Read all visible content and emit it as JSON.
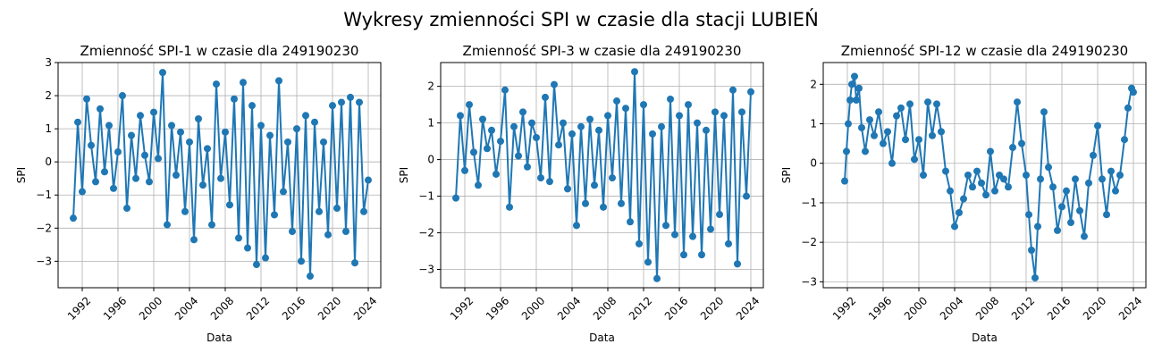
{
  "figure": {
    "suptitle": "Wykresy zmienności SPI w czasie dla stacji LUBIEŃ",
    "line_color": "#1f77b4",
    "grid_color": "#b0b0b0"
  },
  "chart_data": [
    {
      "type": "line",
      "title": "Zmienność SPI-1 w czasie dla 249190230",
      "xlabel": "Data",
      "ylabel": "SPI",
      "xlim": [
        1989.3,
        2025.4
      ],
      "ylim": [
        -3.8,
        3.0
      ],
      "xticks": [
        "1992",
        "1996",
        "2000",
        "2004",
        "2008",
        "2012",
        "2016",
        "2020",
        "2024"
      ],
      "yticks": [
        -3,
        -2,
        -1,
        0,
        1,
        2,
        3
      ],
      "grid": true,
      "marker": "circle",
      "series": [
        {
          "x": [
            1991.0,
            1991.5,
            1992.0,
            1992.5,
            1993.0,
            1993.5,
            1994.0,
            1994.5,
            1995.0,
            1995.5,
            1996.0,
            1996.5,
            1997.0,
            1997.5,
            1998.0,
            1998.5,
            1999.0,
            1999.5,
            2000.0,
            2000.5,
            2001.0,
            2001.5,
            2002.0,
            2002.5,
            2003.0,
            2003.5,
            2004.0,
            2004.5,
            2005.0,
            2005.5,
            2006.0,
            2006.5,
            2007.0,
            2007.5,
            2008.0,
            2008.5,
            2009.0,
            2009.5,
            2010.0,
            2010.5,
            2011.0,
            2011.5,
            2012.0,
            2012.5,
            2013.0,
            2013.5,
            2014.0,
            2014.5,
            2015.0,
            2015.5,
            2016.0,
            2016.5,
            2017.0,
            2017.5,
            2018.0,
            2018.5,
            2019.0,
            2019.5,
            2020.0,
            2020.5,
            2021.0,
            2021.5,
            2022.0,
            2022.5,
            2023.0,
            2023.5,
            2024.0
          ],
          "y": [
            -1.7,
            1.2,
            -0.9,
            1.9,
            0.5,
            -0.6,
            1.6,
            -0.3,
            1.1,
            -0.8,
            0.3,
            2.0,
            -1.4,
            0.8,
            -0.5,
            1.4,
            0.2,
            -0.6,
            1.5,
            0.1,
            2.7,
            -1.9,
            1.1,
            -0.4,
            0.9,
            -1.5,
            0.6,
            -2.35,
            1.3,
            -0.7,
            0.4,
            -1.9,
            2.35,
            -0.5,
            0.9,
            -1.3,
            1.9,
            -2.3,
            2.4,
            -2.6,
            1.7,
            -3.1,
            1.1,
            -2.9,
            0.8,
            -1.6,
            2.45,
            -0.9,
            0.6,
            -2.1,
            1.0,
            -3.0,
            1.4,
            -3.45,
            1.2,
            -1.5,
            0.6,
            -2.2,
            1.7,
            -1.4,
            1.8,
            -2.1,
            1.95,
            -3.05,
            1.8,
            -1.5,
            -0.55
          ]
        }
      ]
    },
    {
      "type": "line",
      "title": "Zmienność SPI-3 w czasie dla 249190230",
      "xlabel": "Data",
      "ylabel": "SPI",
      "xlim": [
        1989.3,
        2025.4
      ],
      "ylim": [
        -3.5,
        2.65
      ],
      "xticks": [
        "1992",
        "1996",
        "2000",
        "2004",
        "2008",
        "2012",
        "2016",
        "2020",
        "2024"
      ],
      "yticks": [
        -3,
        -2,
        -1,
        0,
        1,
        2
      ],
      "grid": true,
      "marker": "circle",
      "series": [
        {
          "x": [
            1991.0,
            1991.5,
            1992.0,
            1992.5,
            1993.0,
            1993.5,
            1994.0,
            1994.5,
            1995.0,
            1995.5,
            1996.0,
            1996.5,
            1997.0,
            1997.5,
            1998.0,
            1998.5,
            1999.0,
            1999.5,
            2000.0,
            2000.5,
            2001.0,
            2001.5,
            2002.0,
            2002.5,
            2003.0,
            2003.5,
            2004.0,
            2004.5,
            2005.0,
            2005.5,
            2006.0,
            2006.5,
            2007.0,
            2007.5,
            2008.0,
            2008.5,
            2009.0,
            2009.5,
            2010.0,
            2010.5,
            2011.0,
            2011.5,
            2012.0,
            2012.5,
            2013.0,
            2013.5,
            2014.0,
            2014.5,
            2015.0,
            2015.5,
            2016.0,
            2016.5,
            2017.0,
            2017.5,
            2018.0,
            2018.5,
            2019.0,
            2019.5,
            2020.0,
            2020.5,
            2021.0,
            2021.5,
            2022.0,
            2022.5,
            2023.0,
            2023.5,
            2024.0
          ],
          "y": [
            -1.05,
            1.2,
            -0.3,
            1.5,
            0.2,
            -0.7,
            1.1,
            0.3,
            0.8,
            -0.4,
            0.5,
            1.9,
            -1.3,
            0.9,
            0.1,
            1.3,
            -0.2,
            1.0,
            0.6,
            -0.5,
            1.7,
            -0.6,
            2.05,
            0.4,
            1.0,
            -0.8,
            0.7,
            -1.8,
            0.9,
            -1.2,
            1.1,
            -0.7,
            0.8,
            -1.3,
            1.2,
            -0.5,
            1.6,
            -1.2,
            1.4,
            -1.7,
            2.4,
            -2.3,
            1.5,
            -2.8,
            0.7,
            -3.25,
            0.9,
            -1.8,
            1.65,
            -2.05,
            1.2,
            -2.6,
            1.5,
            -2.1,
            1.0,
            -2.6,
            0.8,
            -1.9,
            1.3,
            -1.5,
            1.2,
            -2.3,
            1.9,
            -2.85,
            1.3,
            -1.0,
            1.85
          ]
        }
      ]
    },
    {
      "type": "line",
      "title": "Zmienność SPI-12 w czasie dla 249190230",
      "xlabel": "Data",
      "ylabel": "SPI",
      "xlim": [
        1989.3,
        2025.4
      ],
      "ylim": [
        -3.15,
        2.55
      ],
      "xticks": [
        "1992",
        "1996",
        "2000",
        "2004",
        "2008",
        "2012",
        "2016",
        "2020",
        "2024"
      ],
      "yticks": [
        -3,
        -2,
        -1,
        0,
        1,
        2
      ],
      "grid": true,
      "marker": "circle",
      "series": [
        {
          "x": [
            1991.7,
            1991.9,
            1992.1,
            1992.3,
            1992.5,
            1992.8,
            1993.0,
            1993.3,
            1993.6,
            1994.0,
            1994.5,
            1995.0,
            1995.5,
            1996.0,
            1996.5,
            1997.0,
            1997.5,
            1998.0,
            1998.5,
            1999.0,
            1999.5,
            2000.0,
            2000.5,
            2001.0,
            2001.5,
            2002.0,
            2002.5,
            2003.0,
            2003.5,
            2004.0,
            2004.5,
            2005.0,
            2005.5,
            2006.0,
            2006.5,
            2007.0,
            2007.5,
            2008.0,
            2008.5,
            2009.0,
            2009.5,
            2010.0,
            2010.5,
            2011.0,
            2011.5,
            2012.0,
            2012.3,
            2012.6,
            2013.0,
            2013.3,
            2013.6,
            2014.0,
            2014.5,
            2015.0,
            2015.5,
            2016.0,
            2016.5,
            2017.0,
            2017.5,
            2018.0,
            2018.5,
            2019.0,
            2019.5,
            2020.0,
            2020.5,
            2021.0,
            2021.5,
            2022.0,
            2022.5,
            2023.0,
            2023.4,
            2023.8,
            2024.0
          ],
          "y": [
            -0.45,
            0.3,
            1.0,
            1.6,
            2.0,
            2.2,
            1.6,
            1.9,
            0.9,
            0.3,
            1.1,
            0.7,
            1.3,
            0.5,
            0.8,
            0.0,
            1.2,
            1.4,
            0.6,
            1.5,
            0.1,
            0.6,
            -0.3,
            1.55,
            0.7,
            1.5,
            0.8,
            -0.2,
            -0.7,
            -1.6,
            -1.25,
            -0.9,
            -0.3,
            -0.6,
            -0.2,
            -0.5,
            -0.8,
            0.3,
            -0.7,
            -0.3,
            -0.4,
            -0.6,
            0.4,
            1.55,
            0.5,
            -0.3,
            -1.3,
            -2.2,
            -2.9,
            -1.6,
            -0.4,
            1.3,
            -0.1,
            -0.6,
            -1.7,
            -1.1,
            -0.7,
            -1.5,
            -0.4,
            -1.2,
            -1.85,
            -0.5,
            0.2,
            0.95,
            -0.4,
            -1.3,
            -0.2,
            -0.7,
            -0.3,
            0.6,
            1.4,
            1.9,
            1.8
          ]
        }
      ]
    }
  ]
}
